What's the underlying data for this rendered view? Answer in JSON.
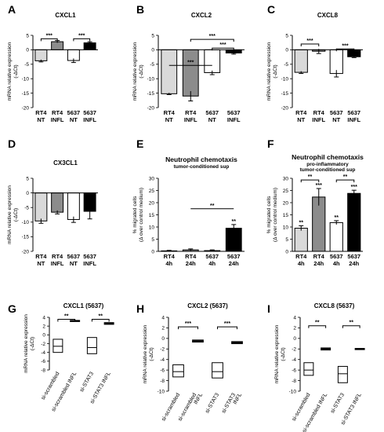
{
  "figure": {
    "colors": {
      "axis": "#000000",
      "white": "#ffffff",
      "light": "#d9d9d9",
      "mid": "#8c8c8c",
      "black": "#000000"
    },
    "sig": "***"
  },
  "chart_data": [
    {
      "panel": "A",
      "title": "CXCL1",
      "type": "bar",
      "ylabel": "mRNA relative expression",
      "ylabel2": "(-ΔCt)",
      "ylim": [
        -20,
        5
      ],
      "yticks": [
        5,
        0,
        -5,
        -10,
        -15,
        -20
      ],
      "categories": [
        [
          "RT4",
          "NT"
        ],
        [
          "RT4",
          "INFL"
        ],
        [
          "5637",
          "NT"
        ],
        [
          "5637",
          "INFL"
        ]
      ],
      "values": [
        -3.8,
        2.8,
        -3.7,
        2.4
      ],
      "errors": [
        0.4,
        0.4,
        0.7,
        0.4
      ],
      "fills": [
        "light",
        "mid",
        "white",
        "black"
      ],
      "brackets": [
        {
          "from": 0,
          "to": 1,
          "y": 3.8,
          "label": "***"
        },
        {
          "from": 2,
          "to": 3,
          "y": 3.8,
          "label": "***"
        }
      ]
    },
    {
      "panel": "B",
      "title": "CXCL2",
      "type": "bar",
      "ylabel": "mRNA relative expression",
      "ylabel2": "(-ΔCt)",
      "ylim": [
        -20,
        5
      ],
      "yticks": [
        5,
        0,
        -5,
        -10,
        -15,
        -20
      ],
      "categories": [
        [
          "RT4",
          "NT"
        ],
        [
          "RT4",
          "INFL"
        ],
        [
          "5637",
          "NT"
        ],
        [
          "5637",
          "INFL"
        ]
      ],
      "values": [
        -15.2,
        -16.0,
        -7.9,
        -1.1
      ],
      "errors": [
        0.3,
        1.7,
        0.7,
        0.4
      ],
      "fills": [
        "light",
        "mid",
        "white",
        "black"
      ],
      "brackets": [
        {
          "from": 0,
          "to": 2,
          "y": -5.4,
          "label": "***",
          "style": "line"
        },
        {
          "from": 2,
          "to": 3,
          "y": 0.6,
          "label": "***"
        },
        {
          "from": 1,
          "to": 3,
          "y": 3.6,
          "label": "***"
        }
      ]
    },
    {
      "panel": "C",
      "title": "CXCL8",
      "type": "bar",
      "ylabel": "mRNA relative expression",
      "ylabel2": "(-ΔCt)",
      "ylim": [
        -20,
        5
      ],
      "yticks": [
        5,
        0,
        -5,
        -10,
        -15,
        -20
      ],
      "categories": [
        [
          "RT4",
          "NT"
        ],
        [
          "RT4",
          "INFL"
        ],
        [
          "5637",
          "NT"
        ],
        [
          "5637",
          "INFL"
        ]
      ],
      "values": [
        -7.8,
        -0.5,
        -8.2,
        -2.4
      ],
      "errors": [
        0.4,
        0.8,
        1.2,
        0.3
      ],
      "fills": [
        "light",
        "mid",
        "white",
        "black"
      ],
      "brackets": [
        {
          "from": 0,
          "to": 1,
          "y": 2.0,
          "label": "***"
        },
        {
          "from": 2,
          "to": 3,
          "y": 0.3,
          "label": "***"
        }
      ]
    },
    {
      "panel": "D",
      "title": "CX3CL1",
      "type": "bar",
      "ylabel": "mRNA relative expression",
      "ylabel2": "(-ΔCt)",
      "ylim": [
        -20,
        5
      ],
      "yticks": [
        5,
        0,
        -5,
        -10,
        -15,
        -20
      ],
      "categories": [
        [
          "RT4",
          "NT"
        ],
        [
          "RT4",
          "INFL"
        ],
        [
          "5637",
          "NT"
        ],
        [
          "5637",
          "INFL"
        ]
      ],
      "values": [
        -9.6,
        -6.6,
        -9.1,
        -6.3
      ],
      "errors": [
        0.8,
        0.6,
        1.0,
        2.6
      ],
      "fills": [
        "light",
        "mid",
        "white",
        "black"
      ],
      "brackets": []
    },
    {
      "panel": "E",
      "title": "Neutrophil chemotaxis",
      "subtitle": "tumor-conditioned sup",
      "type": "bar",
      "ylabel": "% migrated cells",
      "ylabel2": "(Δ over control medium)",
      "ylim": [
        0,
        30
      ],
      "yticks": [
        30,
        25,
        20,
        15,
        10,
        5,
        0
      ],
      "categories": [
        [
          "RT4",
          "4h"
        ],
        [
          "RT4",
          "24h"
        ],
        [
          "5637",
          "4h"
        ],
        [
          "5637",
          "24h"
        ]
      ],
      "values": [
        0.2,
        0.6,
        0.3,
        9.5
      ],
      "errors": [
        0.2,
        0.4,
        0.3,
        1.5
      ],
      "fills": [
        "light",
        "mid",
        "white",
        "black"
      ],
      "brackets": [
        {
          "from": 1,
          "to": 3,
          "y": 17.5,
          "label": "**",
          "style": "line"
        }
      ],
      "labels": [
        {
          "bar": 3,
          "text": "**"
        }
      ]
    },
    {
      "panel": "F",
      "title": "Neutrophil chemotaxis",
      "subtitle": "pro-inflammatory",
      "subtitle2": "tumor-conditioned sup",
      "type": "bar",
      "ylabel": "% migrated cells",
      "ylabel2": "(Δ over control medium)",
      "ylim": [
        0,
        30
      ],
      "yticks": [
        30,
        25,
        20,
        15,
        10,
        5,
        0
      ],
      "categories": [
        [
          "RT4",
          "4h"
        ],
        [
          "RT4",
          "24h"
        ],
        [
          "5637",
          "4h"
        ],
        [
          "5637",
          "24h"
        ]
      ],
      "values": [
        9.5,
        22.3,
        11.8,
        23.8
      ],
      "errors": [
        1.0,
        3.5,
        0.8,
        1.3
      ],
      "fills": [
        "light",
        "mid",
        "white",
        "black"
      ],
      "brackets": [
        {
          "from": 0,
          "to": 1,
          "y": 29.3,
          "label": "**"
        },
        {
          "from": 2,
          "to": 3,
          "y": 29.3,
          "label": "**"
        }
      ],
      "labels": [
        {
          "bar": 0,
          "text": "**"
        },
        {
          "bar": 1,
          "text": "***"
        },
        {
          "bar": 2,
          "text": "**"
        },
        {
          "bar": 3,
          "text": "***"
        }
      ]
    },
    {
      "panel": "G",
      "title": "CXCL1 (5637)",
      "type": "box",
      "ylabel": "mRNA relative expression",
      "ylabel2": "(-ΔCt)",
      "ylim": [
        -8,
        4
      ],
      "yticks": [
        4,
        2,
        0,
        -2,
        -4,
        -6,
        -8
      ],
      "categories": [
        "si-scrambled",
        "si-scrambled INFL",
        "si-STAT3",
        "si-STAT3 INFL"
      ],
      "boxes": [
        [
          -4.0,
          -2.6,
          -1.0
        ],
        [
          3.1,
          3.2,
          3.3
        ],
        [
          -4.3,
          -2.9,
          -0.6
        ],
        [
          2.4,
          2.6,
          2.8
        ]
      ],
      "brackets": [
        {
          "from": 0,
          "to": 1,
          "y": 3.55,
          "label": "**"
        },
        {
          "from": 2,
          "to": 3,
          "y": 3.55,
          "label": "**"
        }
      ]
    },
    {
      "panel": "H",
      "title": "CXCL2 (5637)",
      "type": "box",
      "ylabel": "mRNA relative expression",
      "ylabel2": "(-ΔCt)",
      "ylim": [
        -10,
        4
      ],
      "yticks": [
        4,
        2,
        0,
        -2,
        -4,
        -6,
        -8,
        -10
      ],
      "categories": [
        [
          "si-scrambled"
        ],
        [
          "si-scrambled",
          "INFL"
        ],
        [
          "si-STAT3"
        ],
        [
          "si-STAT3",
          "INFL"
        ]
      ],
      "boxes": [
        [
          -7.3,
          -6.3,
          -5.0
        ],
        [
          -0.7,
          -0.5,
          -0.3
        ],
        [
          -7.5,
          -6.3,
          -4.6
        ],
        [
          -1.0,
          -0.8,
          -0.6
        ]
      ],
      "brackets": [
        {
          "from": 0,
          "to": 1,
          "y": 2.2,
          "label": "***"
        },
        {
          "from": 2,
          "to": 3,
          "y": 2.2,
          "label": "***"
        }
      ]
    },
    {
      "panel": "I",
      "title": "CXCL8 (5637)",
      "type": "box",
      "ylabel": "mRNA relative expression",
      "ylabel2": "(-ΔCt)",
      "ylim": [
        -10,
        4
      ],
      "yticks": [
        4,
        2,
        0,
        -2,
        -4,
        -6,
        -8,
        -10
      ],
      "categories": [
        "si-scrambled",
        "si-scrambled INFL",
        "si-STAT3",
        "si-STAT3 INFL"
      ],
      "boxes": [
        [
          -7.0,
          -6.0,
          -4.6
        ],
        [
          -2.2,
          -2.0,
          -1.8
        ],
        [
          -8.4,
          -6.7,
          -5.3
        ],
        [
          -2.1,
          -2.0,
          -1.9
        ]
      ],
      "brackets": [
        {
          "from": 0,
          "to": 1,
          "y": 2.4,
          "label": "**"
        },
        {
          "from": 2,
          "to": 3,
          "y": 2.4,
          "label": "**"
        }
      ]
    }
  ]
}
